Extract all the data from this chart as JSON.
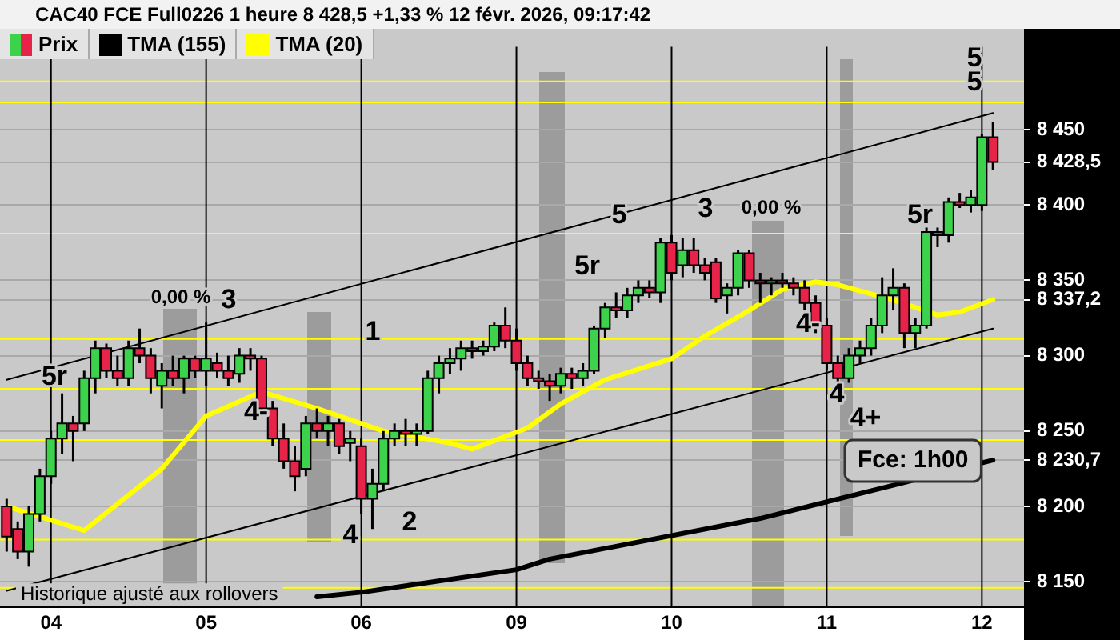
{
  "chart_data": {
    "type": "candlestick",
    "title": "CAC40 FCE Full0226 1 heure 8 428,5 +1,33 % 12 févr. 2026, 09:17:42",
    "categories": [
      null,
      null,
      null,
      null,
      "04",
      null,
      null,
      null,
      null,
      null,
      null,
      null,
      null,
      null,
      null,
      null,
      null,
      null,
      "05",
      null,
      null,
      null,
      null,
      null,
      null,
      null,
      null,
      null,
      null,
      null,
      null,
      null,
      "06",
      null,
      null,
      null,
      null,
      null,
      null,
      null,
      null,
      null,
      null,
      null,
      null,
      null,
      "09",
      null,
      null,
      null,
      null,
      null,
      null,
      null,
      null,
      null,
      null,
      null,
      null,
      null,
      "10",
      null,
      null,
      null,
      null,
      null,
      null,
      null,
      null,
      null,
      null,
      null,
      null,
      null,
      "11",
      null,
      null,
      null,
      null,
      null,
      null,
      null,
      null,
      null,
      null,
      null,
      null,
      null,
      "12",
      null
    ],
    "ylim": [
      8133,
      8505
    ],
    "yticks": [
      {
        "value": 8150,
        "label": "8 150"
      },
      {
        "value": 8200,
        "label": "8 200"
      },
      {
        "value": 8230.7,
        "label": "8 230,7"
      },
      {
        "value": 8250,
        "label": "8 250"
      },
      {
        "value": 8300,
        "label": "8 300"
      },
      {
        "value": 8337.2,
        "label": "8 337,2"
      },
      {
        "value": 8350,
        "label": "8 350"
      },
      {
        "value": 8400,
        "label": "8 400"
      },
      {
        "value": 8428.5,
        "label": "8 428,5"
      },
      {
        "value": 8450,
        "label": "8 450"
      }
    ],
    "grid": "y",
    "legend": "top left",
    "series": [
      {
        "name": "Prix",
        "ohlc": [
          [
            8200,
            8205,
            8170,
            8180
          ],
          [
            8185,
            8190,
            8165,
            8170
          ],
          [
            8170,
            8200,
            8160,
            8195
          ],
          [
            8195,
            8225,
            8190,
            8220
          ],
          [
            8220,
            8250,
            8215,
            8245
          ],
          [
            8245,
            8275,
            8235,
            8255
          ],
          [
            8255,
            8260,
            8230,
            8250
          ],
          [
            8255,
            8290,
            8250,
            8285
          ],
          [
            8285,
            8310,
            8275,
            8305
          ],
          [
            8305,
            8308,
            8285,
            8290
          ],
          [
            8290,
            8300,
            8280,
            8285
          ],
          [
            8285,
            8310,
            8280,
            8305
          ],
          [
            8305,
            8318,
            8295,
            8300
          ],
          [
            8300,
            8305,
            8275,
            8285
          ],
          [
            8280,
            8295,
            8265,
            8290
          ],
          [
            8290,
            8300,
            8280,
            8285
          ],
          [
            8285,
            8300,
            8275,
            8298
          ],
          [
            8298,
            8300,
            8285,
            8290
          ],
          [
            8290,
            8322,
            8280,
            8298
          ],
          [
            8295,
            8302,
            8285,
            8290
          ],
          [
            8290,
            8300,
            8280,
            8285
          ],
          [
            8288,
            8305,
            8282,
            8300
          ],
          [
            8300,
            8305,
            8290,
            8298
          ],
          [
            8298,
            8300,
            8260,
            8265
          ],
          [
            8265,
            8270,
            8240,
            8245
          ],
          [
            8245,
            8255,
            8225,
            8230
          ],
          [
            8230,
            8240,
            8210,
            8220
          ],
          [
            8225,
            8260,
            8220,
            8255
          ],
          [
            8255,
            8265,
            8245,
            8250
          ],
          [
            8250,
            8260,
            8240,
            8255
          ],
          [
            8255,
            8258,
            8235,
            8240
          ],
          [
            8242,
            8250,
            8230,
            8245
          ],
          [
            8240,
            8245,
            8195,
            8205
          ],
          [
            8205,
            8225,
            8185,
            8215
          ],
          [
            8215,
            8250,
            8210,
            8245
          ],
          [
            8245,
            8255,
            8240,
            8250
          ],
          [
            8250,
            8258,
            8240,
            8248
          ],
          [
            8248,
            8255,
            8240,
            8250
          ],
          [
            8250,
            8290,
            8248,
            8285
          ],
          [
            8285,
            8300,
            8275,
            8295
          ],
          [
            8295,
            8305,
            8288,
            8298
          ],
          [
            8298,
            8310,
            8290,
            8305
          ],
          [
            8305,
            8310,
            8298,
            8303
          ],
          [
            8303,
            8310,
            8300,
            8306
          ],
          [
            8306,
            8322,
            8303,
            8320
          ],
          [
            8320,
            8332,
            8305,
            8310
          ],
          [
            8310,
            8318,
            8290,
            8295
          ],
          [
            8295,
            8300,
            8280,
            8285
          ],
          [
            8285,
            8290,
            8278,
            8283
          ],
          [
            8283,
            8288,
            8270,
            8280
          ],
          [
            8280,
            8292,
            8275,
            8288
          ],
          [
            8288,
            8292,
            8278,
            8285
          ],
          [
            8285,
            8295,
            8280,
            8290
          ],
          [
            8290,
            8320,
            8288,
            8318
          ],
          [
            8318,
            8335,
            8312,
            8332
          ],
          [
            8332,
            8342,
            8325,
            8330
          ],
          [
            8330,
            8345,
            8325,
            8340
          ],
          [
            8340,
            8350,
            8335,
            8345
          ],
          [
            8345,
            8350,
            8338,
            8342
          ],
          [
            8342,
            8378,
            8335,
            8375
          ],
          [
            8375,
            8380,
            8350,
            8355
          ],
          [
            8360,
            8378,
            8352,
            8370
          ],
          [
            8370,
            8378,
            8355,
            8360
          ],
          [
            8360,
            8365,
            8350,
            8355
          ],
          [
            8362,
            8365,
            8335,
            8338
          ],
          [
            8340,
            8348,
            8328,
            8345
          ],
          [
            8345,
            8370,
            8340,
            8368
          ],
          [
            8368,
            8370,
            8345,
            8350
          ],
          [
            8350,
            8355,
            8335,
            8348
          ],
          [
            8348,
            8352,
            8340,
            8350
          ],
          [
            8350,
            8355,
            8345,
            8348
          ],
          [
            8348,
            8352,
            8340,
            8345
          ],
          [
            8345,
            8350,
            8330,
            8335
          ],
          [
            8335,
            8340,
            8315,
            8320
          ],
          [
            8320,
            8325,
            8290,
            8295
          ],
          [
            8295,
            8300,
            8280,
            8285
          ],
          [
            8285,
            8305,
            8282,
            8300
          ],
          [
            8300,
            8310,
            8295,
            8305
          ],
          [
            8305,
            8325,
            8300,
            8320
          ],
          [
            8320,
            8352,
            8315,
            8340
          ],
          [
            8340,
            8358,
            8330,
            8345
          ],
          [
            8345,
            8348,
            8305,
            8315
          ],
          [
            8315,
            8325,
            8305,
            8320
          ],
          [
            8320,
            8385,
            8318,
            8382
          ],
          [
            8382,
            8385,
            8372,
            8380
          ],
          [
            8380,
            8405,
            8375,
            8402
          ],
          [
            8402,
            8408,
            8398,
            8400
          ],
          [
            8400,
            8410,
            8395,
            8405
          ],
          [
            8400,
            8447,
            8396,
            8445
          ],
          [
            8445,
            8455,
            8423,
            8428.5
          ]
        ],
        "colors": [
          "#e8234a",
          "#e8234a",
          "#3cd24b",
          "#3cd24b",
          "#3cd24b",
          "#3cd24b",
          "#e8234a",
          "#3cd24b",
          "#3cd24b",
          "#e8234a",
          "#e8234a",
          "#3cd24b",
          "#e8234a",
          "#e8234a",
          "#3cd24b",
          "#e8234a",
          "#3cd24b",
          "#e8234a",
          "#3cd24b",
          "#e8234a",
          "#e8234a",
          "#3cd24b",
          "#e8234a",
          "#e8234a",
          "#e8234a",
          "#e8234a",
          "#e8234a",
          "#3cd24b",
          "#e8234a",
          "#3cd24b",
          "#e8234a",
          "#3cd24b",
          "#e8234a",
          "#3cd24b",
          "#3cd24b",
          "#3cd24b",
          "#e8234a",
          "#3cd24b",
          "#3cd24b",
          "#3cd24b",
          "#3cd24b",
          "#3cd24b",
          "#e8234a",
          "#3cd24b",
          "#3cd24b",
          "#e8234a",
          "#e8234a",
          "#e8234a",
          "#e8234a",
          "#e8234a",
          "#3cd24b",
          "#e8234a",
          "#3cd24b",
          "#3cd24b",
          "#3cd24b",
          "#e8234a",
          "#3cd24b",
          "#3cd24b",
          "#e8234a",
          "#3cd24b",
          "#e8234a",
          "#3cd24b",
          "#e8234a",
          "#e8234a",
          "#e8234a",
          "#3cd24b",
          "#3cd24b",
          "#e8234a",
          "#e8234a",
          "#3cd24b",
          "#e8234a",
          "#e8234a",
          "#e8234a",
          "#e8234a",
          "#e8234a",
          "#e8234a",
          "#3cd24b",
          "#3cd24b",
          "#3cd24b",
          "#3cd24b",
          "#3cd24b",
          "#e8234a",
          "#3cd24b",
          "#3cd24b",
          "#e8234a",
          "#3cd24b",
          "#e8234a",
          "#3cd24b",
          "#3cd24b",
          "#e8234a"
        ]
      },
      {
        "type": "line",
        "name": "TMA (155)",
        "color": "#000000",
        "values": [
          null,
          null,
          null,
          null,
          null,
          null,
          null,
          null,
          null,
          null,
          null,
          null,
          null,
          null,
          null,
          null,
          null,
          null,
          null,
          null,
          null,
          null,
          null,
          null,
          null,
          null,
          null,
          null,
          8140,
          null,
          null,
          null,
          8143,
          null,
          null,
          null,
          null,
          null,
          null,
          null,
          null,
          null,
          null,
          null,
          null,
          null,
          8158,
          null,
          null,
          8165,
          null,
          null,
          null,
          null,
          null,
          null,
          null,
          null,
          null,
          null,
          null,
          null,
          null,
          null,
          null,
          null,
          null,
          null,
          8192,
          null,
          null,
          null,
          null,
          null,
          null,
          null,
          null,
          null,
          null,
          null,
          8214,
          null,
          null,
          null,
          null,
          null,
          null,
          null,
          null,
          8230.7
        ]
      },
      {
        "type": "line",
        "name": "TMA (20)",
        "color": "#ffff00",
        "values": [
          8200,
          null,
          null,
          null,
          null,
          null,
          null,
          8184,
          null,
          null,
          null,
          null,
          null,
          null,
          8225,
          null,
          null,
          null,
          8260,
          null,
          null,
          null,
          null,
          8276,
          null,
          null,
          null,
          null,
          8265,
          null,
          null,
          null,
          null,
          null,
          8250,
          null,
          null,
          null,
          null,
          null,
          8242,
          null,
          8238,
          null,
          null,
          null,
          null,
          8252,
          null,
          null,
          8268,
          null,
          null,
          null,
          8284,
          null,
          null,
          null,
          null,
          null,
          8298,
          null,
          null,
          8313,
          null,
          null,
          null,
          8330,
          null,
          null,
          8344,
          null,
          null,
          8349,
          null,
          8347,
          null,
          null,
          null,
          null,
          8337,
          null,
          null,
          null,
          8327,
          null,
          8329,
          null,
          null,
          8337.2
        ]
      },
      {
        "type": "line",
        "color": "#000000",
        "values": [
          8284,
          null,
          null,
          null,
          null,
          null,
          null,
          null,
          null,
          null,
          null,
          null,
          null,
          null,
          null,
          null,
          null,
          null,
          null,
          null,
          null,
          null,
          null,
          null,
          null,
          null,
          null,
          null,
          null,
          null,
          null,
          null,
          null,
          null,
          null,
          null,
          null,
          null,
          null,
          null,
          null,
          null,
          null,
          null,
          null,
          null,
          null,
          null,
          null,
          null,
          null,
          null,
          null,
          null,
          null,
          null,
          null,
          null,
          null,
          null,
          null,
          null,
          null,
          null,
          null,
          null,
          null,
          null,
          null,
          null,
          null,
          null,
          null,
          null,
          null,
          null,
          null,
          null,
          null,
          null,
          null,
          null,
          null,
          null,
          null,
          null,
          null,
          null,
          null,
          8461
        ]
      },
      {
        "type": "line",
        "color": "#000000",
        "values": [
          8144,
          null,
          null,
          null,
          null,
          null,
          null,
          null,
          null,
          null,
          null,
          null,
          null,
          null,
          null,
          null,
          null,
          null,
          null,
          null,
          null,
          null,
          null,
          null,
          null,
          null,
          null,
          null,
          null,
          null,
          null,
          null,
          null,
          null,
          null,
          null,
          null,
          null,
          null,
          null,
          null,
          null,
          null,
          null,
          null,
          null,
          null,
          null,
          null,
          null,
          null,
          null,
          null,
          null,
          null,
          null,
          null,
          null,
          null,
          null,
          null,
          null,
          null,
          null,
          null,
          null,
          null,
          null,
          null,
          null,
          null,
          null,
          null,
          null,
          null,
          null,
          null,
          null,
          null,
          null,
          null,
          null,
          null,
          null,
          null,
          null,
          null,
          null,
          null,
          8318
        ]
      }
    ],
    "ref_lines": [
      {
        "axis": "y",
        "value": 8482,
        "color": "#ffff00"
      },
      {
        "axis": "y",
        "value": 8468,
        "color": "#ffff00"
      },
      {
        "axis": "y",
        "value": 8381,
        "color": "#ffff00"
      },
      {
        "axis": "y",
        "value": 8311,
        "color": "#ffff00"
      },
      {
        "axis": "y",
        "value": 8278,
        "color": "#ffff00"
      },
      {
        "axis": "y",
        "value": 8244,
        "color": "#ffff00"
      },
      {
        "axis": "y",
        "value": 8178,
        "color": "#ffff00"
      },
      {
        "axis": "y",
        "value": 8146,
        "color": "#ffff00"
      },
      {
        "axis": "x",
        "value": "04",
        "color": "#000000"
      },
      {
        "axis": "x",
        "value": "05",
        "color": "#000000"
      },
      {
        "axis": "x",
        "value": "06",
        "color": "#000000"
      },
      {
        "axis": "x",
        "value": "09",
        "color": "#000000"
      },
      {
        "axis": "x",
        "value": "10",
        "color": "#000000"
      },
      {
        "axis": "x",
        "value": "11",
        "color": "#000000"
      },
      {
        "axis": "x",
        "value": "12",
        "color": "#000000"
      }
    ],
    "annotations": [
      "5r",
      "0,00 %",
      "3",
      "4-",
      "1",
      "4",
      "2",
      "5r",
      "5",
      "3",
      "0,00 %",
      "4-",
      "4",
      "4+",
      "5r",
      "5",
      "5",
      "Fce: 1h00",
      "Historique ajusté aux rollovers"
    ]
  }
}
